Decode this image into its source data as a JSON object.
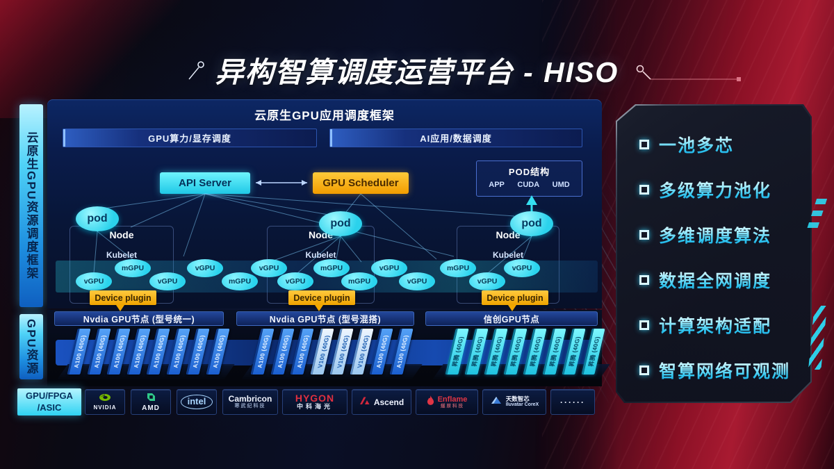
{
  "title": "异构智算调度运营平台 - HISO",
  "left_rails": {
    "framework": "云原生GPU资源调度框架",
    "gpu": "GPU资源"
  },
  "framework": {
    "header": "云原生GPU应用调度框架",
    "sub_bars": [
      "GPU算力/显存调度",
      "AI应用/数据调度"
    ],
    "api_server": "API Server",
    "gpu_scheduler": "GPU Scheduler",
    "pod_structure": {
      "title": "POD结构",
      "items": [
        "APP",
        "CUDA",
        "UMD"
      ]
    },
    "node_label": "Node",
    "kubelet_label": "Kubelet",
    "pod_label": "pod",
    "device_plugin_label": "Device plugin",
    "gpu_ellipses": [
      "vGPU",
      "mGPU",
      "vGPU",
      "vGPU",
      "mGPU",
      "vGPU",
      "vGPU",
      "mGPU",
      "mGPU",
      "vGPU",
      "vGPU",
      "mGPU",
      "vGPU",
      "vGPU"
    ]
  },
  "gpu_groups": [
    {
      "label": "Nvdia GPU节点 (型号统一)",
      "cards": [
        {
          "t": "A100 (40G)",
          "v": "blue"
        },
        {
          "t": "A100 (40G)",
          "v": "blue"
        },
        {
          "t": "A100 (40G)",
          "v": "blue"
        },
        {
          "t": "A100 (40G)",
          "v": "blue"
        },
        {
          "t": "A100 (40G)",
          "v": "blue"
        },
        {
          "t": "A100 (40G)",
          "v": "blue"
        },
        {
          "t": "A100 (40G)",
          "v": "blue"
        },
        {
          "t": "A100 (40G)",
          "v": "blue"
        }
      ]
    },
    {
      "label": "Nvdia GPU节点 (型号混搭)",
      "cards": [
        {
          "t": "A100 (40G)",
          "v": "blue"
        },
        {
          "t": "A100 (40G)",
          "v": "blue"
        },
        {
          "t": "A100 (40G)",
          "v": "blue"
        },
        {
          "t": "V100 (40G)",
          "v": "light"
        },
        {
          "t": "V100 (40G)",
          "v": "light"
        },
        {
          "t": "V100 (40G)",
          "v": "light"
        },
        {
          "t": "A100 (40G)",
          "v": "blue"
        },
        {
          "t": "A100 (40G)",
          "v": "blue"
        }
      ]
    },
    {
      "label": "信创GPU节点",
      "cards": [
        {
          "t": "昇腾 (40G)",
          "v": "cyan"
        },
        {
          "t": "昇腾 (40G)",
          "v": "cyan"
        },
        {
          "t": "昇腾 (40G)",
          "v": "cyan"
        },
        {
          "t": "昇腾 (40G)",
          "v": "cyan"
        },
        {
          "t": "昇腾 (40G)",
          "v": "cyan"
        },
        {
          "t": "昇腾 (40G)",
          "v": "cyan"
        },
        {
          "t": "昇腾 (40G)",
          "v": "cyan"
        },
        {
          "t": "昇腾 (40G)",
          "v": "cyan"
        }
      ]
    }
  ],
  "hardware": {
    "category_line1": "GPU/FPGA",
    "category_line2": "/ASIC",
    "vendors": [
      {
        "key": "nvidia",
        "name": "NVIDIA",
        "sub": ""
      },
      {
        "key": "amd",
        "name": "AMD",
        "sub": ""
      },
      {
        "key": "intel",
        "name": "intel",
        "sub": ""
      },
      {
        "key": "cambricon",
        "name": "Cambricon",
        "sub": "寒武纪科技"
      },
      {
        "key": "hygon",
        "name": "HYGON",
        "sub": "中科海光"
      },
      {
        "key": "ascend",
        "name": "Ascend",
        "sub": ""
      },
      {
        "key": "enflame",
        "name": "Enflame",
        "sub": "燧原科技"
      },
      {
        "key": "iluvatar",
        "name": "天数智芯",
        "sub": "Iluvatar CoreX"
      },
      {
        "key": "more",
        "name": "······",
        "sub": ""
      }
    ]
  },
  "features": [
    "一池多芯",
    "多级算力池化",
    "多维调度算法",
    "数据全网调度",
    "计算架构适配",
    "智算网络可观测"
  ],
  "colors": {
    "cyan": "#35e2f2",
    "orange": "#f2a800",
    "navy": "#0a1c4c",
    "red": "#a81a31",
    "card_blue": "#1b5fd0"
  }
}
